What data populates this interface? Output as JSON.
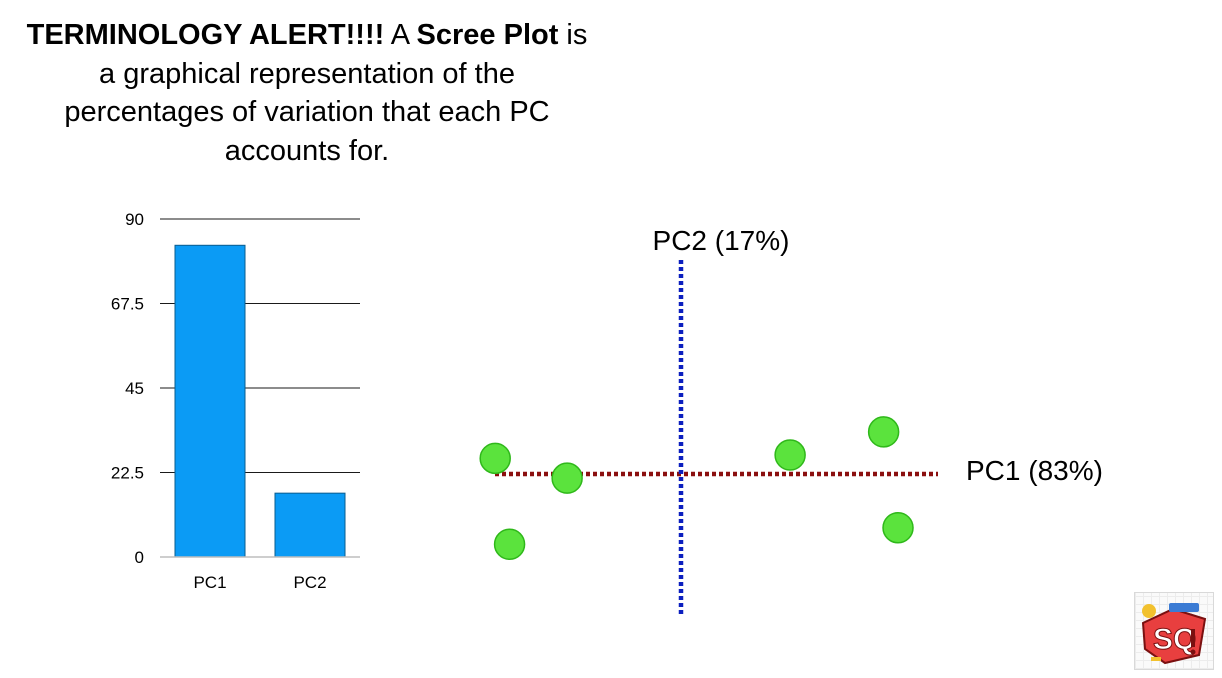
{
  "headline": {
    "part1": "TERMINOLOGY ALERT!!!!",
    "part2": " A ",
    "part3": "Scree Plot",
    "part4": " is a graphical representation of the percentages of variation that each PC accounts for."
  },
  "chart_data": [
    {
      "type": "bar",
      "categories": [
        "PC1",
        "PC2"
      ],
      "values": [
        83,
        17
      ],
      "yticks": [
        "0",
        "22.5",
        "45",
        "67.5",
        "90"
      ],
      "ylim": [
        0,
        90
      ],
      "grid": true,
      "colors": {
        "bar": "#0b9bf5",
        "bar_edge": "#0a5c8e"
      }
    },
    {
      "type": "scatter",
      "xlabel": "PC1 (83%)",
      "ylabel": "PC2 (17%)",
      "points": [
        {
          "x": -5.0,
          "y": 0.3
        },
        {
          "x": -3.0,
          "y": 0.0
        },
        {
          "x": -4.6,
          "y": -1.0
        },
        {
          "x": 3.2,
          "y": 0.35
        },
        {
          "x": 5.8,
          "y": 0.7
        },
        {
          "x": 6.2,
          "y": -0.75
        }
      ],
      "xlim": [
        -5.2,
        6.7
      ],
      "ylim": [
        -2.1,
        3.3
      ],
      "colors": {
        "point": "#5be33d",
        "point_edge": "#2fb81a",
        "x_axis": "#8b0f0f",
        "y_axis": "#0b1fbf"
      }
    }
  ]
}
